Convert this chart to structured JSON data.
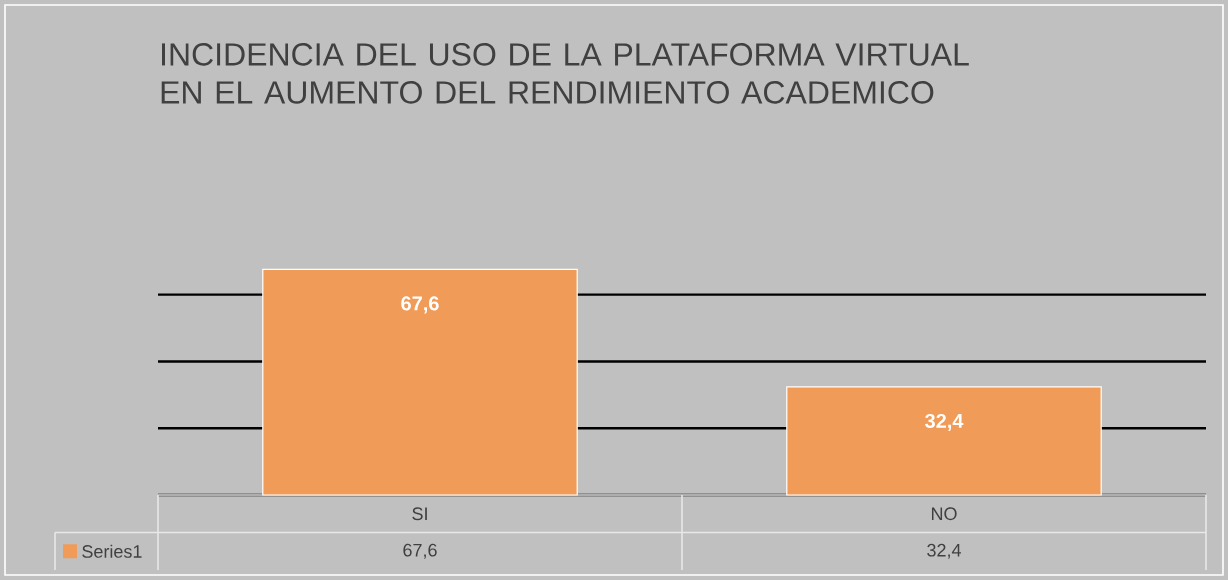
{
  "chart_data": {
    "type": "bar",
    "title": "INCIDENCIA DEL USO DE LA PLATAFORMA VIRTUAL EN EL AUMENTO DEL  RENDIMIENTO ACADEMICO",
    "categories": [
      "SI",
      "NO"
    ],
    "series": [
      {
        "name": "Series1",
        "color": "#f09c58",
        "values": [
          67.6,
          32.4
        ],
        "value_labels": [
          "67,6",
          "32,4"
        ]
      }
    ],
    "grid": "y",
    "tick_labels": "x",
    "legend": "bottom"
  }
}
